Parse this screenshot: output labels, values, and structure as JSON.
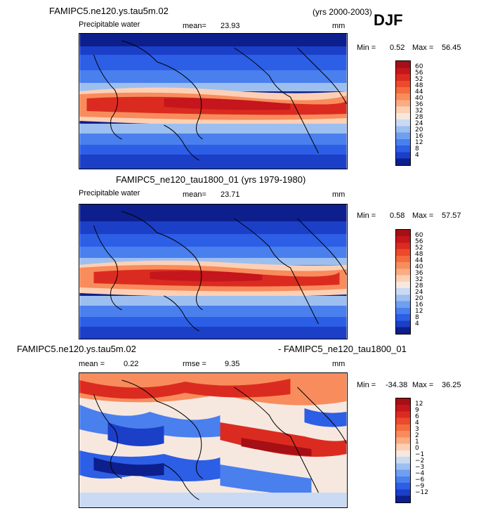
{
  "season": "DJF",
  "panels": [
    {
      "title_left": "FAMIPC5.ne120.ys.tau5m.02",
      "title_right": "(yrs 2000-2003)",
      "variable": "Precipitable water",
      "mean_label": "mean=",
      "mean_value": "23.93",
      "units": "mm",
      "min_label": "Min =",
      "min_value": "0.52",
      "max_label": "Max =",
      "max_value": "56.45",
      "colorbar_labels": [
        "60",
        "56",
        "52",
        "48",
        "44",
        "40",
        "36",
        "32",
        "28",
        "24",
        "20",
        "16",
        "12",
        "8",
        "4"
      ],
      "colorbar_colors": [
        "#a50f15",
        "#c4161c",
        "#db2b20",
        "#ec4a2c",
        "#f46b3e",
        "#f88c5c",
        "#fbac83",
        "#fdd0b5",
        "#f6e8df",
        "#c9daf2",
        "#9dbff0",
        "#6f9ff0",
        "#4a7fee",
        "#2c5ee6",
        "#1c3fc8",
        "#0d1f8c"
      ]
    },
    {
      "title_left": "FAMIPC5_ne120_tau1800_01 (yrs 1979-1980)",
      "variable": "Precipitable water",
      "mean_label": "mean=",
      "mean_value": "23.71",
      "units": "mm",
      "min_label": "Min =",
      "min_value": "0.58",
      "max_label": "Max =",
      "max_value": "57.57",
      "colorbar_labels": [
        "60",
        "56",
        "52",
        "48",
        "44",
        "40",
        "36",
        "32",
        "28",
        "24",
        "20",
        "16",
        "12",
        "8",
        "4"
      ],
      "colorbar_colors": [
        "#a50f15",
        "#c4161c",
        "#db2b20",
        "#ec4a2c",
        "#f46b3e",
        "#f88c5c",
        "#fbac83",
        "#fdd0b5",
        "#f6e8df",
        "#c9daf2",
        "#9dbff0",
        "#6f9ff0",
        "#4a7fee",
        "#2c5ee6",
        "#1c3fc8",
        "#0d1f8c"
      ]
    },
    {
      "title_left": "FAMIPC5.ne120.ys.tau5m.02",
      "title_right": "- FAMIPC5_ne120_tau1800_01",
      "mean_label": "mean =",
      "mean_value": "0.22",
      "rmse_label": "rmse =",
      "rmse_value": "9.35",
      "units": "mm",
      "min_label": "Min =",
      "min_value": "-34.38",
      "max_label": "Max =",
      "max_value": "36.25",
      "colorbar_labels": [
        "12",
        "9",
        "6",
        "4",
        "3",
        "2",
        "1",
        "0",
        "−1",
        "−2",
        "−3",
        "−4",
        "−6",
        "−9",
        "−12"
      ],
      "colorbar_colors": [
        "#a50f15",
        "#c4161c",
        "#db2b20",
        "#ec4a2c",
        "#f46b3e",
        "#f88c5c",
        "#fbac83",
        "#fdd0b5",
        "#f6e8df",
        "#c9daf2",
        "#9dbff0",
        "#6f9ff0",
        "#4a7fee",
        "#2c5ee6",
        "#1c3fc8",
        "#0d1f8c"
      ]
    }
  ]
}
